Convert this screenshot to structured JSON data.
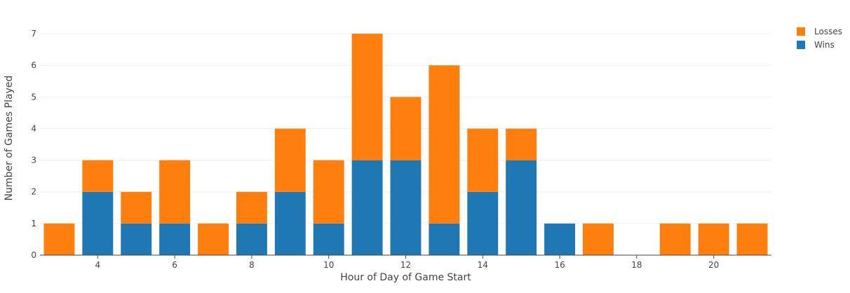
{
  "chart_data": {
    "type": "bar",
    "barmode": "stack",
    "x": [
      3,
      4,
      5,
      6,
      7,
      8,
      9,
      10,
      11,
      12,
      13,
      14,
      15,
      16,
      17,
      18,
      19,
      20,
      21
    ],
    "series": [
      {
        "name": "Wins",
        "color": "#1f77b4",
        "values": [
          0,
          2,
          1,
          1,
          0,
          1,
          2,
          1,
          3,
          3,
          1,
          2,
          3,
          1,
          0,
          0,
          0,
          0,
          0
        ]
      },
      {
        "name": "Losses",
        "color": "#ff7f0e",
        "values": [
          1,
          1,
          1,
          2,
          1,
          1,
          2,
          2,
          4,
          2,
          5,
          2,
          1,
          0,
          1,
          0,
          1,
          1,
          1
        ]
      }
    ],
    "xlabel": "Hour of Day of Game Start",
    "ylabel": "Number of Games Played",
    "xticks": [
      4,
      6,
      8,
      10,
      12,
      14,
      16,
      18,
      20
    ],
    "yticks": [
      0,
      1,
      2,
      3,
      4,
      5,
      6,
      7
    ],
    "xlim": [
      2.5,
      21.5
    ],
    "ylim": [
      0,
      7.4
    ],
    "grid": true,
    "legend_position": "top-right",
    "legend_order": [
      "Losses",
      "Wins"
    ]
  }
}
